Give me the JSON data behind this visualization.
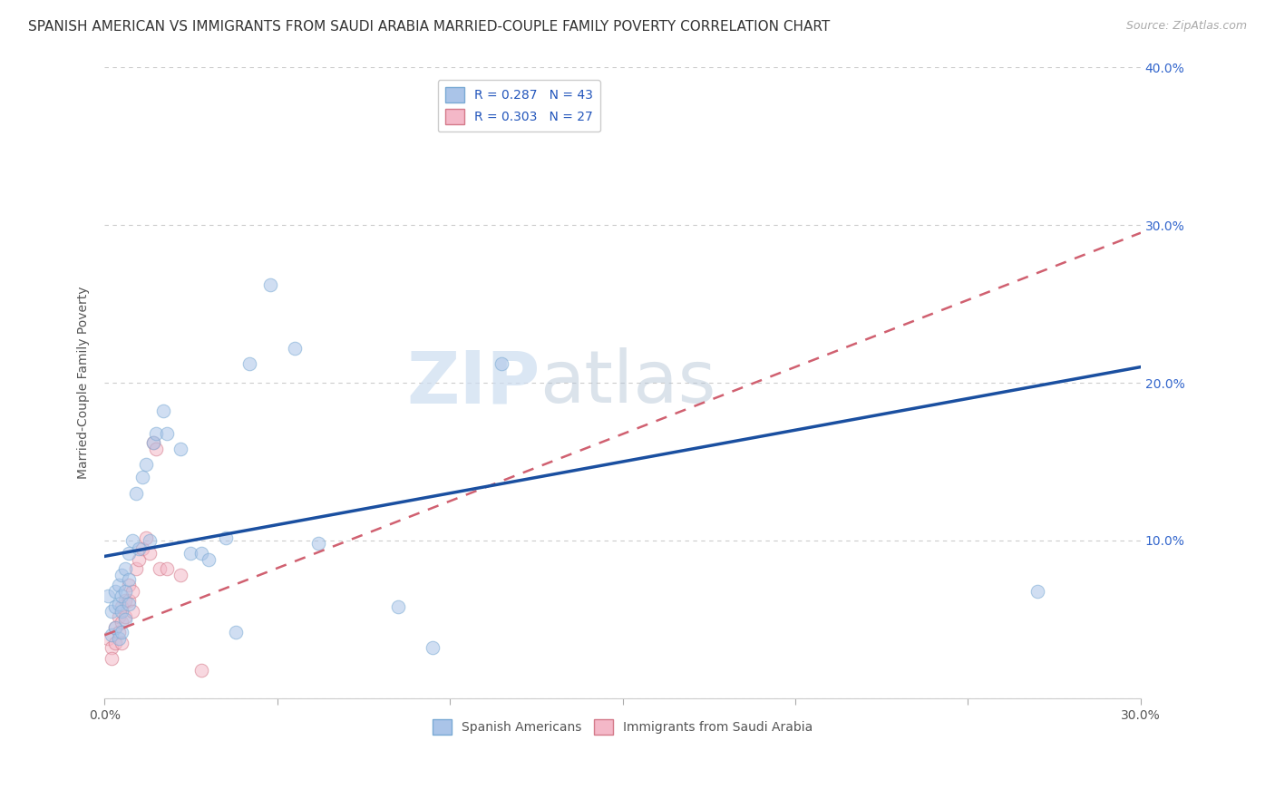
{
  "title": "SPANISH AMERICAN VS IMMIGRANTS FROM SAUDI ARABIA MARRIED-COUPLE FAMILY POVERTY CORRELATION CHART",
  "source": "Source: ZipAtlas.com",
  "ylabel": "Married-Couple Family Poverty",
  "xlim": [
    0,
    0.3
  ],
  "ylim": [
    0,
    0.4
  ],
  "xticks": [
    0.0,
    0.05,
    0.1,
    0.15,
    0.2,
    0.25,
    0.3
  ],
  "yticks": [
    0.0,
    0.1,
    0.2,
    0.3,
    0.4
  ],
  "series1_label": "Spanish Americans",
  "series1_R": "0.287",
  "series1_N": "43",
  "series1_color": "#aac4e8",
  "series1_edge_color": "#7aaad4",
  "series1_line_color": "#1a4fa0",
  "series2_label": "Immigrants from Saudi Arabia",
  "series2_R": "0.303",
  "series2_N": "27",
  "series2_color": "#f4b8c8",
  "series2_edge_color": "#d47a8a",
  "series2_line_color": "#d06070",
  "watermark_zip": "ZIP",
  "watermark_atlas": "atlas",
  "background_color": "#ffffff",
  "grid_color": "#cccccc",
  "series1_x": [
    0.001,
    0.002,
    0.002,
    0.003,
    0.003,
    0.003,
    0.004,
    0.004,
    0.004,
    0.005,
    0.005,
    0.005,
    0.005,
    0.006,
    0.006,
    0.006,
    0.007,
    0.007,
    0.007,
    0.008,
    0.009,
    0.01,
    0.011,
    0.012,
    0.013,
    0.014,
    0.015,
    0.017,
    0.018,
    0.022,
    0.025,
    0.028,
    0.03,
    0.035,
    0.038,
    0.042,
    0.048,
    0.055,
    0.062,
    0.085,
    0.095,
    0.115,
    0.27
  ],
  "series1_y": [
    0.065,
    0.055,
    0.04,
    0.068,
    0.058,
    0.045,
    0.072,
    0.06,
    0.038,
    0.078,
    0.065,
    0.055,
    0.042,
    0.082,
    0.068,
    0.05,
    0.092,
    0.075,
    0.06,
    0.1,
    0.13,
    0.095,
    0.14,
    0.148,
    0.1,
    0.162,
    0.168,
    0.182,
    0.168,
    0.158,
    0.092,
    0.092,
    0.088,
    0.102,
    0.042,
    0.212,
    0.262,
    0.222,
    0.098,
    0.058,
    0.032,
    0.212,
    0.068
  ],
  "series2_x": [
    0.001,
    0.002,
    0.002,
    0.003,
    0.003,
    0.004,
    0.004,
    0.005,
    0.005,
    0.005,
    0.006,
    0.006,
    0.007,
    0.007,
    0.008,
    0.008,
    0.009,
    0.01,
    0.011,
    0.012,
    0.013,
    0.014,
    0.015,
    0.016,
    0.018,
    0.022,
    0.028
  ],
  "series2_y": [
    0.038,
    0.032,
    0.025,
    0.045,
    0.035,
    0.052,
    0.042,
    0.058,
    0.048,
    0.035,
    0.062,
    0.052,
    0.072,
    0.062,
    0.068,
    0.055,
    0.082,
    0.088,
    0.095,
    0.102,
    0.092,
    0.162,
    0.158,
    0.082,
    0.082,
    0.078,
    0.018
  ],
  "blue_line_x0": 0.0,
  "blue_line_y0": 0.09,
  "blue_line_x1": 0.3,
  "blue_line_y1": 0.21,
  "pink_line_x0": 0.0,
  "pink_line_y0": 0.04,
  "pink_line_x1": 0.3,
  "pink_line_y1": 0.295,
  "marker_size": 110,
  "marker_alpha": 0.55,
  "title_fontsize": 11,
  "axis_label_fontsize": 10,
  "tick_label_fontsize": 10,
  "legend_fontsize": 10
}
